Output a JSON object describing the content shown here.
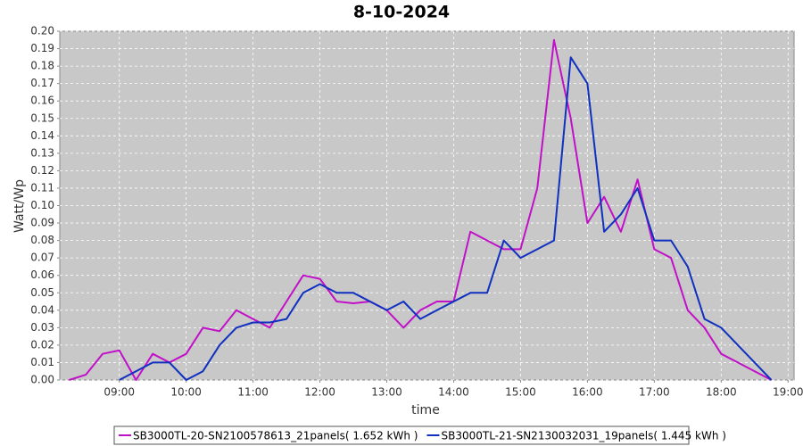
{
  "chart_data": {
    "type": "line",
    "title": "8-10-2024",
    "x_label": "time",
    "y_label": "Watt/Wp",
    "x": [
      8.25,
      8.5,
      8.75,
      9.0,
      9.25,
      9.5,
      9.75,
      10.0,
      10.25,
      10.5,
      10.75,
      11.0,
      11.25,
      11.5,
      11.75,
      12.0,
      12.25,
      12.5,
      12.75,
      13.0,
      13.25,
      13.5,
      13.75,
      14.0,
      14.25,
      14.5,
      14.75,
      15.0,
      15.25,
      15.5,
      15.75,
      16.0,
      16.25,
      16.5,
      16.75,
      17.0,
      17.25,
      17.5,
      17.75,
      18.0,
      18.25,
      18.5,
      18.75
    ],
    "series": [
      {
        "name": "SB3000TL-20-SN2100578613_21panels( 1.652 kWh )",
        "color": "#c010c8",
        "values": [
          0,
          0.003,
          0.015,
          0.017,
          0,
          0.015,
          0.01,
          0.015,
          0.03,
          0.028,
          0.04,
          0.035,
          0.03,
          0.045,
          0.06,
          0.058,
          0.045,
          0.044,
          0.045,
          0.04,
          0.03,
          0.04,
          0.045,
          0.045,
          0.085,
          0.08,
          0.075,
          0.075,
          0.11,
          0.195,
          0.15,
          0.09,
          0.105,
          0.085,
          0.115,
          0.075,
          0.07,
          0.04,
          0.03,
          0.015,
          0.01,
          0.005,
          0
        ]
      },
      {
        "name": "SB3000TL-21-SN2130032031_19panels( 1.445 kWh )",
        "color": "#1030c0",
        "values": [
          null,
          null,
          null,
          0,
          0.005,
          0.01,
          0.01,
          0,
          0.005,
          0.02,
          0.03,
          0.033,
          0.033,
          0.035,
          0.05,
          0.055,
          0.05,
          0.05,
          0.045,
          0.04,
          0.045,
          0.035,
          0.04,
          0.045,
          0.05,
          0.05,
          0.08,
          0.07,
          0.075,
          0.08,
          0.185,
          0.17,
          0.085,
          0.095,
          0.11,
          0.08,
          0.08,
          0.065,
          0.035,
          0.03,
          0.02,
          0.01,
          0
        ]
      }
    ],
    "xlim": [
      8.11,
      19.09
    ],
    "xticks": [
      {
        "value": 9,
        "label": "09:00"
      },
      {
        "value": 10,
        "label": "10:00"
      },
      {
        "value": 11,
        "label": "11:00"
      },
      {
        "value": 12,
        "label": "12:00"
      },
      {
        "value": 13,
        "label": "13:00"
      },
      {
        "value": 14,
        "label": "14:00"
      },
      {
        "value": 15,
        "label": "15:00"
      },
      {
        "value": 16,
        "label": "16:00"
      },
      {
        "value": 17,
        "label": "17:00"
      },
      {
        "value": 18,
        "label": "18:00"
      },
      {
        "value": 19,
        "label": "19:00"
      }
    ],
    "ylim": [
      0,
      0.2
    ],
    "yticks": [
      {
        "value": 0,
        "label": "0.00"
      },
      0.01,
      0.02,
      0.03,
      0.04,
      0.05,
      0.06,
      0.07,
      0.08,
      0.09,
      {
        "value": 0.1,
        "label": "0.10"
      },
      0.11,
      0.12,
      0.13,
      0.14,
      0.15,
      0.16,
      0.17,
      0.18,
      0.19,
      {
        "value": 0.2,
        "label": "0.20"
      }
    ],
    "grid": true,
    "legend": "bottom"
  }
}
